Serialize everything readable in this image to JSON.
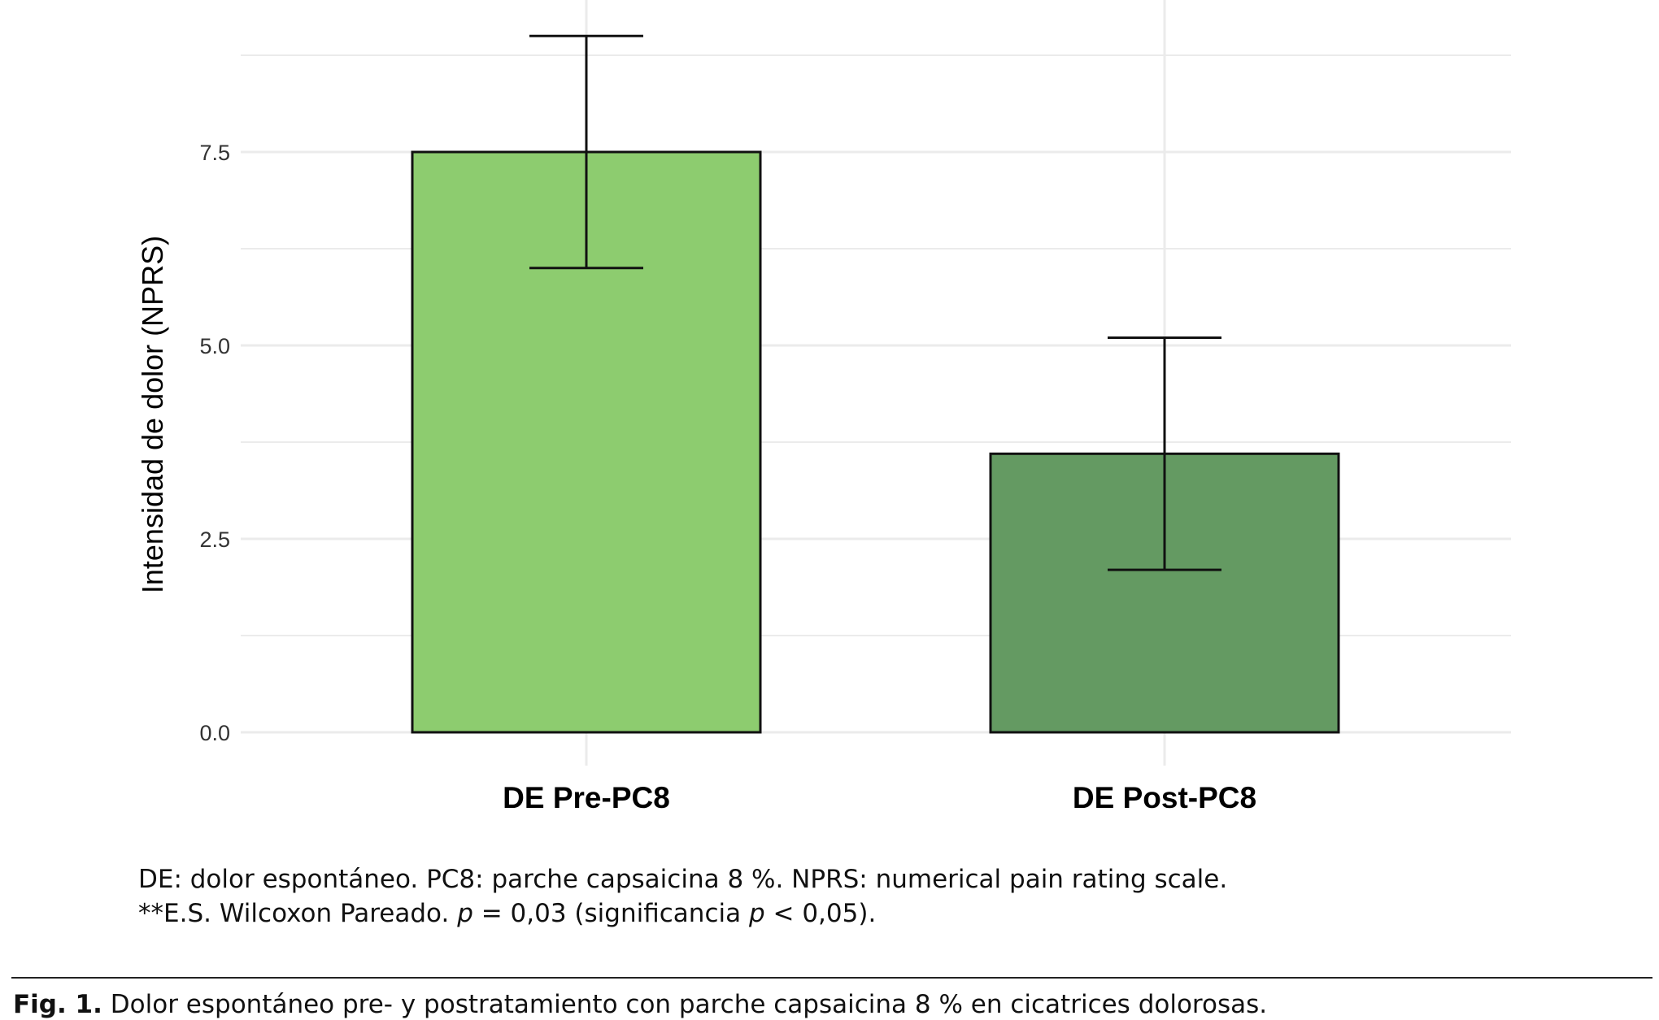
{
  "chart_data": {
    "type": "bar",
    "categories": [
      "DE Pre-PC8",
      "DE Post-PC8"
    ],
    "values": [
      7.5,
      3.6
    ],
    "error_low": [
      6.0,
      2.1
    ],
    "error_high": [
      9.0,
      5.1
    ],
    "colors": [
      "#8dcc6f",
      "#649a62"
    ],
    "xlabel": "",
    "ylabel": "Intensidad de dolor (NPRS)",
    "yticks": [
      "0.0",
      "2.5",
      "5.0",
      "7.5"
    ],
    "ytick_values": [
      0,
      2.5,
      5.0,
      7.5
    ],
    "ylim": [
      0,
      9.3
    ],
    "grid": true
  },
  "footnotes": {
    "line1": "DE: dolor espontáneo. PC8: parche capsaicina 8 %. NPRS: numerical pain rating scale.",
    "line2_a": "**E.S. Wilcoxon Pareado. ",
    "line2_p1": "p",
    "line2_b": " = 0,03 (significancia ",
    "line2_p2": "p",
    "line2_c": " < 0,05)."
  },
  "caption": {
    "label": "Fig. 1.",
    "text": " Dolor espontáneo pre- y postratamiento con parche capsaicina 8 % en cicatrices dolorosas."
  }
}
